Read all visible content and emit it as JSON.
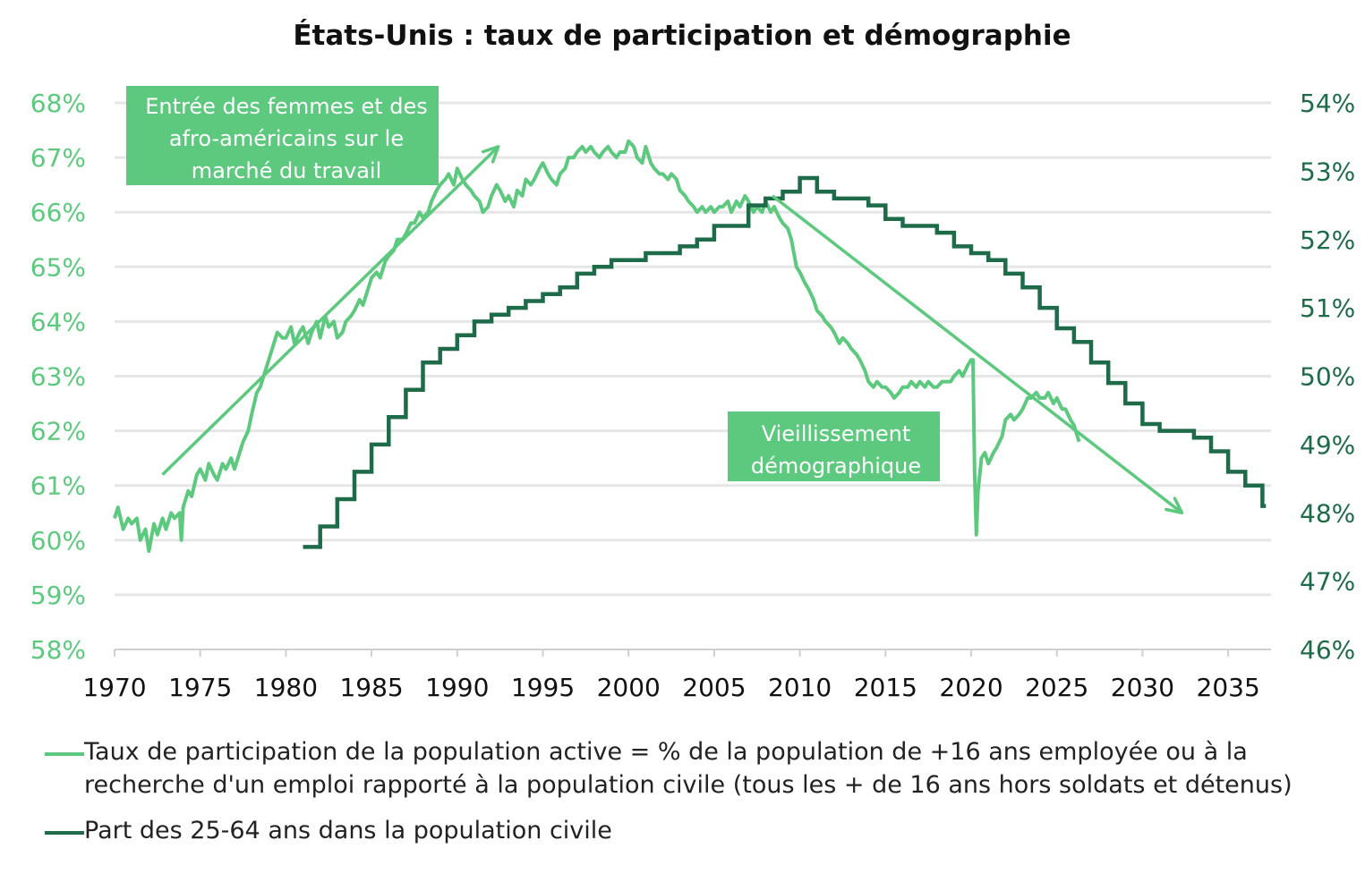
{
  "chart_data": {
    "type": "line",
    "title": "États-Unis : taux de participation et démographie",
    "x_ticks": [
      "1970",
      "1975",
      "1980",
      "1985",
      "1990",
      "1995",
      "2000",
      "2005",
      "2010",
      "2015",
      "2020",
      "2025",
      "2030",
      "2035"
    ],
    "xlim": [
      1970,
      2037.5
    ],
    "y_left": {
      "ticks": [
        "58%",
        "59%",
        "60%",
        "61%",
        "62%",
        "63%",
        "64%",
        "65%",
        "66%",
        "67%",
        "68%"
      ],
      "ylim": [
        58,
        68
      ],
      "color": "#5CC97E"
    },
    "y_right": {
      "ticks": [
        "46%",
        "47%",
        "48%",
        "49%",
        "50%",
        "51%",
        "52%",
        "53%",
        "54%"
      ],
      "ylim": [
        46,
        54
      ],
      "color": "#1E6B49"
    },
    "grid": true,
    "legend_placement": "bottom",
    "series": [
      {
        "name": "Taux de participation de la population active = % de la population de +16 ans employée ou à la recherche d'un emploi rapporté à la population civile (tous les + de 16 ans hors soldats et détenus)",
        "axis": "left",
        "color": "#5CC97E",
        "points": [
          [
            1970.0,
            60.4
          ],
          [
            1970.2,
            60.6
          ],
          [
            1970.5,
            60.2
          ],
          [
            1970.8,
            60.4
          ],
          [
            1971.0,
            60.3
          ],
          [
            1971.3,
            60.4
          ],
          [
            1971.5,
            60.0
          ],
          [
            1971.8,
            60.2
          ],
          [
            1972.0,
            59.8
          ],
          [
            1972.3,
            60.3
          ],
          [
            1972.5,
            60.1
          ],
          [
            1972.8,
            60.4
          ],
          [
            1973.0,
            60.2
          ],
          [
            1973.3,
            60.5
          ],
          [
            1973.5,
            60.4
          ],
          [
            1973.8,
            60.5
          ],
          [
            1973.9,
            60.0
          ],
          [
            1974.0,
            60.6
          ],
          [
            1974.3,
            60.9
          ],
          [
            1974.5,
            60.8
          ],
          [
            1974.8,
            61.2
          ],
          [
            1975.0,
            61.3
          ],
          [
            1975.3,
            61.1
          ],
          [
            1975.5,
            61.4
          ],
          [
            1975.8,
            61.2
          ],
          [
            1976.0,
            61.1
          ],
          [
            1976.3,
            61.4
          ],
          [
            1976.5,
            61.3
          ],
          [
            1976.8,
            61.5
          ],
          [
            1977.0,
            61.3
          ],
          [
            1977.3,
            61.6
          ],
          [
            1977.5,
            61.8
          ],
          [
            1977.8,
            62.0
          ],
          [
            1978.0,
            62.3
          ],
          [
            1978.3,
            62.7
          ],
          [
            1978.5,
            62.8
          ],
          [
            1978.8,
            63.1
          ],
          [
            1979.0,
            63.3
          ],
          [
            1979.3,
            63.6
          ],
          [
            1979.5,
            63.8
          ],
          [
            1979.8,
            63.7
          ],
          [
            1980.0,
            63.7
          ],
          [
            1980.3,
            63.9
          ],
          [
            1980.5,
            63.6
          ],
          [
            1980.8,
            63.8
          ],
          [
            1981.0,
            63.9
          ],
          [
            1981.3,
            63.6
          ],
          [
            1981.5,
            63.8
          ],
          [
            1981.8,
            64.0
          ],
          [
            1982.0,
            63.7
          ],
          [
            1982.3,
            64.1
          ],
          [
            1982.5,
            63.9
          ],
          [
            1982.8,
            64.0
          ],
          [
            1983.0,
            63.7
          ],
          [
            1983.3,
            63.8
          ],
          [
            1983.5,
            64.0
          ],
          [
            1983.8,
            64.1
          ],
          [
            1984.0,
            64.2
          ],
          [
            1984.3,
            64.4
          ],
          [
            1984.5,
            64.3
          ],
          [
            1984.8,
            64.6
          ],
          [
            1985.0,
            64.8
          ],
          [
            1985.3,
            64.9
          ],
          [
            1985.5,
            64.8
          ],
          [
            1985.8,
            65.1
          ],
          [
            1986.0,
            65.2
          ],
          [
            1986.3,
            65.3
          ],
          [
            1986.5,
            65.5
          ],
          [
            1986.8,
            65.5
          ],
          [
            1987.0,
            65.6
          ],
          [
            1987.3,
            65.8
          ],
          [
            1987.5,
            65.8
          ],
          [
            1987.8,
            66.0
          ],
          [
            1988.0,
            65.9
          ],
          [
            1988.3,
            66.0
          ],
          [
            1988.5,
            66.2
          ],
          [
            1988.8,
            66.4
          ],
          [
            1989.0,
            66.5
          ],
          [
            1989.3,
            66.6
          ],
          [
            1989.5,
            66.7
          ],
          [
            1989.8,
            66.5
          ],
          [
            1990.0,
            66.8
          ],
          [
            1990.3,
            66.6
          ],
          [
            1990.5,
            66.5
          ],
          [
            1990.8,
            66.4
          ],
          [
            1991.0,
            66.3
          ],
          [
            1991.3,
            66.2
          ],
          [
            1991.5,
            66.0
          ],
          [
            1991.8,
            66.1
          ],
          [
            1992.0,
            66.3
          ],
          [
            1992.3,
            66.5
          ],
          [
            1992.5,
            66.4
          ],
          [
            1992.8,
            66.2
          ],
          [
            1993.0,
            66.3
          ],
          [
            1993.3,
            66.1
          ],
          [
            1993.5,
            66.4
          ],
          [
            1993.8,
            66.3
          ],
          [
            1994.0,
            66.6
          ],
          [
            1994.3,
            66.5
          ],
          [
            1994.5,
            66.6
          ],
          [
            1994.8,
            66.8
          ],
          [
            1995.0,
            66.9
          ],
          [
            1995.3,
            66.7
          ],
          [
            1995.5,
            66.6
          ],
          [
            1995.8,
            66.5
          ],
          [
            1996.0,
            66.7
          ],
          [
            1996.3,
            66.8
          ],
          [
            1996.5,
            67.0
          ],
          [
            1996.8,
            67.0
          ],
          [
            1997.0,
            67.1
          ],
          [
            1997.3,
            67.2
          ],
          [
            1997.5,
            67.1
          ],
          [
            1997.8,
            67.2
          ],
          [
            1998.0,
            67.1
          ],
          [
            1998.3,
            67.0
          ],
          [
            1998.5,
            67.1
          ],
          [
            1998.8,
            67.2
          ],
          [
            1999.0,
            67.1
          ],
          [
            1999.3,
            67.0
          ],
          [
            1999.5,
            67.1
          ],
          [
            1999.8,
            67.1
          ],
          [
            2000.0,
            67.3
          ],
          [
            2000.3,
            67.2
          ],
          [
            2000.5,
            67.0
          ],
          [
            2000.8,
            66.9
          ],
          [
            2001.0,
            67.2
          ],
          [
            2001.3,
            66.9
          ],
          [
            2001.5,
            66.8
          ],
          [
            2001.8,
            66.7
          ],
          [
            2002.0,
            66.7
          ],
          [
            2002.3,
            66.6
          ],
          [
            2002.5,
            66.7
          ],
          [
            2002.8,
            66.6
          ],
          [
            2003.0,
            66.4
          ],
          [
            2003.3,
            66.3
          ],
          [
            2003.5,
            66.2
          ],
          [
            2003.8,
            66.1
          ],
          [
            2004.0,
            66.0
          ],
          [
            2004.3,
            66.1
          ],
          [
            2004.5,
            66.0
          ],
          [
            2004.8,
            66.1
          ],
          [
            2005.0,
            66.0
          ],
          [
            2005.3,
            66.1
          ],
          [
            2005.5,
            66.1
          ],
          [
            2005.8,
            66.2
          ],
          [
            2006.0,
            66.0
          ],
          [
            2006.3,
            66.2
          ],
          [
            2006.5,
            66.1
          ],
          [
            2006.8,
            66.3
          ],
          [
            2007.0,
            66.2
          ],
          [
            2007.3,
            66.0
          ],
          [
            2007.5,
            66.1
          ],
          [
            2007.8,
            66.0
          ],
          [
            2008.0,
            66.2
          ],
          [
            2008.3,
            66.0
          ],
          [
            2008.5,
            66.1
          ],
          [
            2008.8,
            65.9
          ],
          [
            2009.0,
            65.8
          ],
          [
            2009.3,
            65.7
          ],
          [
            2009.5,
            65.5
          ],
          [
            2009.8,
            65.0
          ],
          [
            2010.0,
            64.9
          ],
          [
            2010.3,
            64.7
          ],
          [
            2010.5,
            64.6
          ],
          [
            2010.8,
            64.4
          ],
          [
            2011.0,
            64.2
          ],
          [
            2011.3,
            64.1
          ],
          [
            2011.5,
            64.0
          ],
          [
            2011.8,
            63.9
          ],
          [
            2012.0,
            63.8
          ],
          [
            2012.3,
            63.6
          ],
          [
            2012.5,
            63.7
          ],
          [
            2012.8,
            63.6
          ],
          [
            2013.0,
            63.5
          ],
          [
            2013.3,
            63.4
          ],
          [
            2013.5,
            63.3
          ],
          [
            2013.8,
            63.1
          ],
          [
            2014.0,
            62.9
          ],
          [
            2014.3,
            62.8
          ],
          [
            2014.5,
            62.9
          ],
          [
            2014.8,
            62.8
          ],
          [
            2015.0,
            62.8
          ],
          [
            2015.3,
            62.7
          ],
          [
            2015.5,
            62.6
          ],
          [
            2015.8,
            62.7
          ],
          [
            2016.0,
            62.8
          ],
          [
            2016.3,
            62.8
          ],
          [
            2016.5,
            62.9
          ],
          [
            2016.8,
            62.8
          ],
          [
            2017.0,
            62.9
          ],
          [
            2017.3,
            62.8
          ],
          [
            2017.5,
            62.9
          ],
          [
            2017.8,
            62.8
          ],
          [
            2018.0,
            62.8
          ],
          [
            2018.3,
            62.9
          ],
          [
            2018.5,
            62.9
          ],
          [
            2018.8,
            62.9
          ],
          [
            2019.0,
            63.0
          ],
          [
            2019.3,
            63.1
          ],
          [
            2019.5,
            63.0
          ],
          [
            2019.8,
            63.2
          ],
          [
            2020.0,
            63.3
          ],
          [
            2020.1,
            63.3
          ],
          [
            2020.2,
            61.2
          ],
          [
            2020.3,
            60.1
          ],
          [
            2020.4,
            60.9
          ],
          [
            2020.6,
            61.5
          ],
          [
            2020.8,
            61.6
          ],
          [
            2021.0,
            61.4
          ],
          [
            2021.3,
            61.6
          ],
          [
            2021.5,
            61.7
          ],
          [
            2021.8,
            61.9
          ],
          [
            2022.0,
            62.2
          ],
          [
            2022.3,
            62.3
          ],
          [
            2022.5,
            62.2
          ],
          [
            2022.8,
            62.3
          ],
          [
            2023.0,
            62.4
          ],
          [
            2023.3,
            62.6
          ],
          [
            2023.5,
            62.6
          ],
          [
            2023.8,
            62.7
          ],
          [
            2024.0,
            62.6
          ],
          [
            2024.3,
            62.6
          ],
          [
            2024.5,
            62.7
          ],
          [
            2024.8,
            62.5
          ],
          [
            2025.0,
            62.6
          ],
          [
            2025.3,
            62.4
          ],
          [
            2025.5,
            62.4
          ],
          [
            2025.8,
            62.2
          ],
          [
            2026.0,
            62.1
          ],
          [
            2026.3,
            61.8
          ]
        ]
      },
      {
        "name": "Part des 25-64 ans dans la population civile",
        "axis": "right",
        "color": "#1E6B49",
        "steps": [
          [
            1981,
            47.5
          ],
          [
            1982,
            47.8
          ],
          [
            1983,
            48.2
          ],
          [
            1984,
            48.6
          ],
          [
            1985,
            49.0
          ],
          [
            1986,
            49.4
          ],
          [
            1987,
            49.8
          ],
          [
            1988,
            50.2
          ],
          [
            1989,
            50.4
          ],
          [
            1990,
            50.6
          ],
          [
            1991,
            50.8
          ],
          [
            1992,
            50.9
          ],
          [
            1993,
            51.0
          ],
          [
            1994,
            51.1
          ],
          [
            1995,
            51.2
          ],
          [
            1996,
            51.3
          ],
          [
            1997,
            51.5
          ],
          [
            1998,
            51.6
          ],
          [
            1999,
            51.7
          ],
          [
            2000,
            51.7
          ],
          [
            2001,
            51.8
          ],
          [
            2002,
            51.8
          ],
          [
            2003,
            51.9
          ],
          [
            2004,
            52.0
          ],
          [
            2005,
            52.2
          ],
          [
            2006,
            52.2
          ],
          [
            2007,
            52.5
          ],
          [
            2008,
            52.6
          ],
          [
            2009,
            52.7
          ],
          [
            2010,
            52.9
          ],
          [
            2011,
            52.7
          ],
          [
            2012,
            52.6
          ],
          [
            2013,
            52.6
          ],
          [
            2014,
            52.5
          ],
          [
            2015,
            52.3
          ],
          [
            2016,
            52.2
          ],
          [
            2017,
            52.2
          ],
          [
            2018,
            52.1
          ],
          [
            2019,
            51.9
          ],
          [
            2020,
            51.8
          ],
          [
            2021,
            51.7
          ],
          [
            2022,
            51.5
          ],
          [
            2023,
            51.3
          ],
          [
            2024,
            51.0
          ],
          [
            2025,
            50.7
          ],
          [
            2026,
            50.5
          ],
          [
            2027,
            50.2
          ],
          [
            2028,
            49.9
          ],
          [
            2029,
            49.6
          ],
          [
            2030,
            49.3
          ],
          [
            2031,
            49.2
          ],
          [
            2032,
            49.2
          ],
          [
            2033,
            49.1
          ],
          [
            2034,
            48.9
          ],
          [
            2035,
            48.6
          ],
          [
            2036,
            48.4
          ],
          [
            2037,
            48.1
          ]
        ],
        "end_x": 2037.2
      }
    ],
    "annotations": [
      {
        "text": [
          "Entrée des femmes et des",
          "afro-américains sur le",
          "marché du travail"
        ],
        "color": "#5CC97E"
      },
      {
        "text": [
          "Vieillissement",
          "démographique"
        ],
        "color": "#5CC97E"
      }
    ],
    "arrows": [
      {
        "from": [
          1972.8,
          61.2
        ],
        "to": [
          1992.4,
          67.2
        ]
      },
      {
        "from": [
          2008.4,
          66.3
        ],
        "to": [
          2032.3,
          60.5
        ]
      }
    ]
  }
}
